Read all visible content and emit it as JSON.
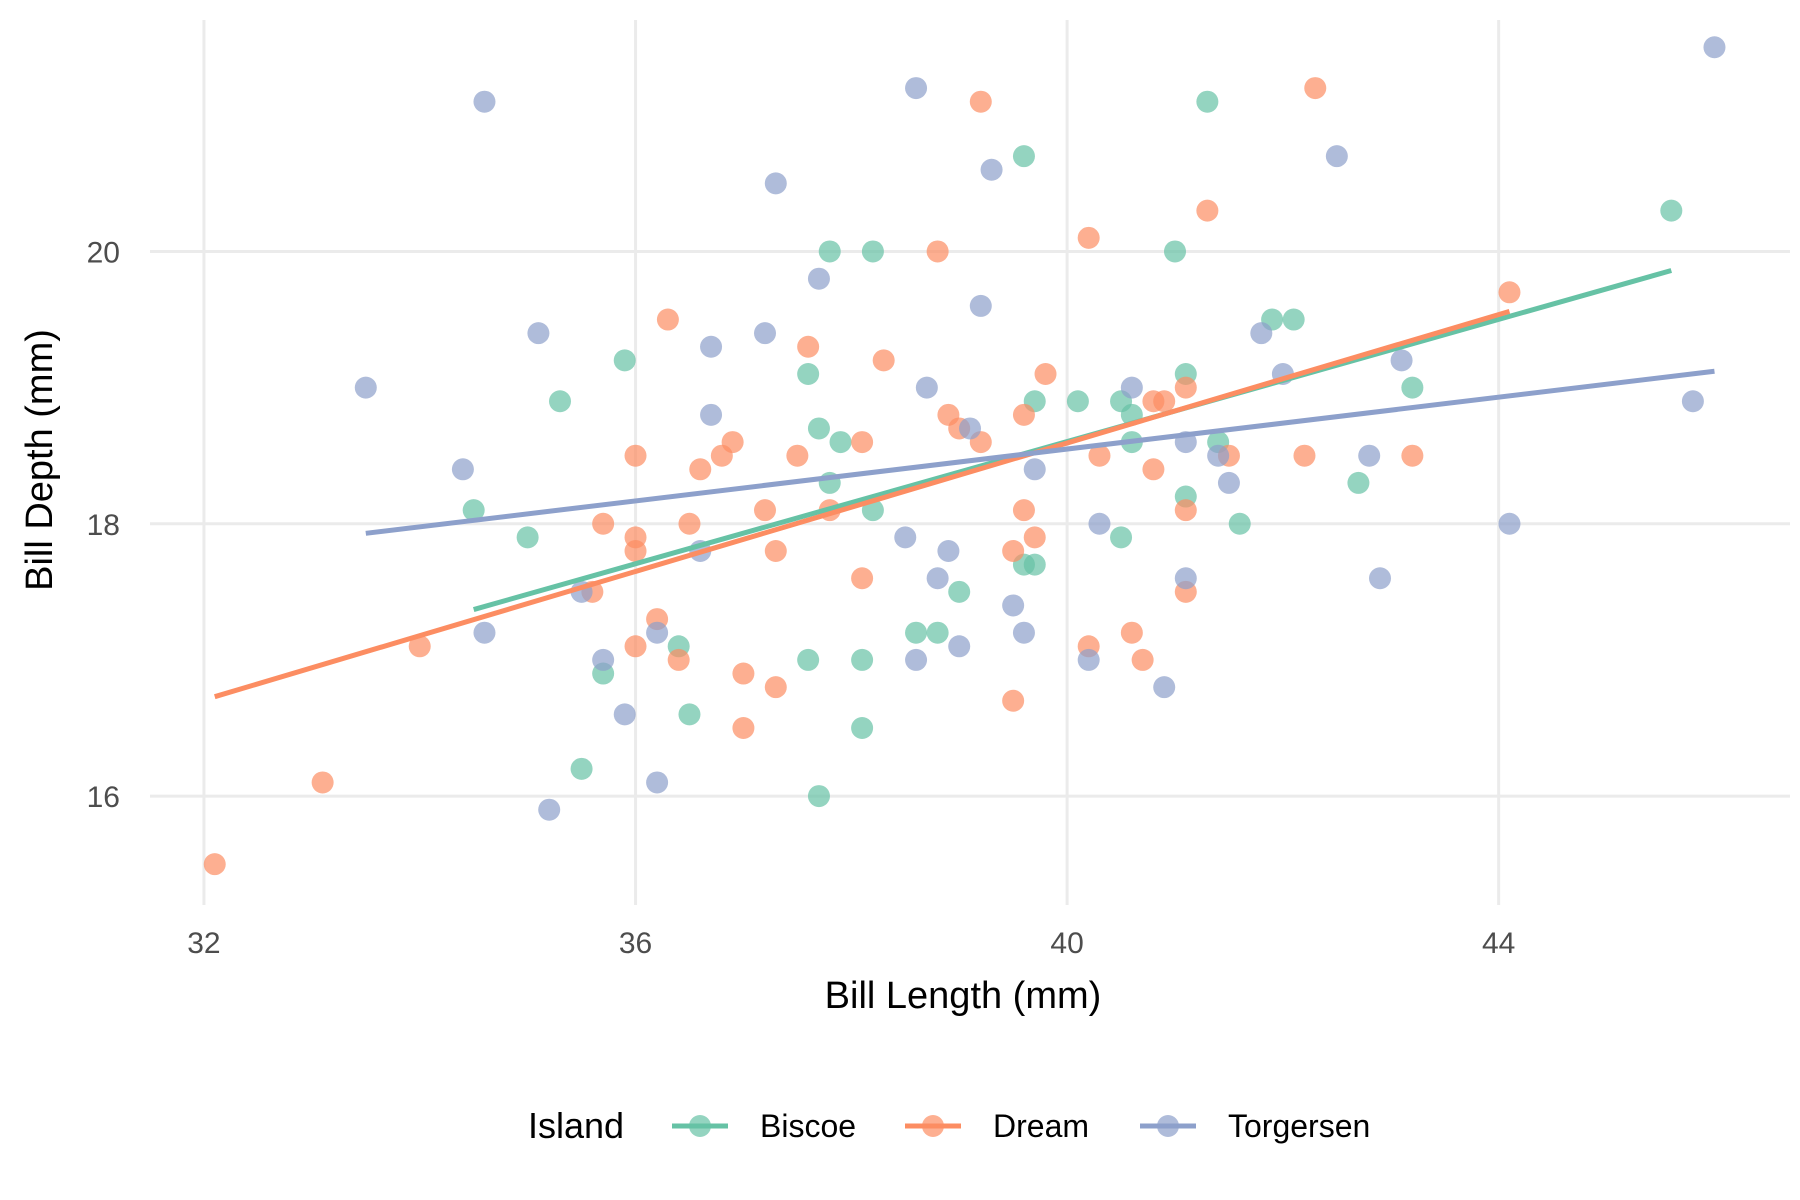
{
  "chart_data": {
    "type": "scatter",
    "title": "",
    "xlabel": "Bill Length (mm)",
    "ylabel": "Bill Depth (mm)",
    "xlim": [
      31.5,
      46.7
    ],
    "ylim": [
      15.2,
      21.7
    ],
    "x_ticks": [
      32,
      36,
      40,
      44
    ],
    "y_ticks": [
      16,
      18,
      20
    ],
    "x_tick_labels": [
      "32",
      "36",
      "40",
      "44"
    ],
    "y_tick_labels": [
      "16",
      "18",
      "20"
    ],
    "grid": true,
    "legend": {
      "title": "Island",
      "placement": "bottom",
      "entries": [
        "Biscoe",
        "Dream",
        "Torgersen"
      ]
    },
    "series": [
      {
        "name": "Biscoe",
        "color": "#66c2a5",
        "points": [
          [
            34.5,
            18.1
          ],
          [
            35.0,
            17.9
          ],
          [
            35.3,
            18.9
          ],
          [
            35.5,
            16.2
          ],
          [
            35.7,
            16.9
          ],
          [
            35.9,
            19.2
          ],
          [
            36.4,
            17.1
          ],
          [
            36.5,
            16.6
          ],
          [
            37.6,
            17.0
          ],
          [
            37.6,
            19.1
          ],
          [
            37.7,
            16.0
          ],
          [
            37.7,
            18.7
          ],
          [
            37.8,
            18.3
          ],
          [
            37.8,
            20.0
          ],
          [
            37.9,
            18.6
          ],
          [
            38.1,
            16.5
          ],
          [
            38.1,
            17.0
          ],
          [
            38.2,
            18.1
          ],
          [
            38.2,
            20.0
          ],
          [
            38.6,
            17.2
          ],
          [
            38.8,
            17.2
          ],
          [
            39.0,
            17.5
          ],
          [
            39.6,
            17.7
          ],
          [
            39.6,
            20.7
          ],
          [
            39.7,
            17.7
          ],
          [
            39.7,
            18.9
          ],
          [
            40.1,
            18.9
          ],
          [
            40.5,
            17.9
          ],
          [
            40.5,
            18.9
          ],
          [
            40.6,
            18.6
          ],
          [
            40.6,
            18.8
          ],
          [
            41.0,
            20.0
          ],
          [
            41.1,
            18.2
          ],
          [
            41.1,
            19.1
          ],
          [
            41.3,
            21.1
          ],
          [
            41.4,
            18.6
          ],
          [
            41.6,
            18.0
          ],
          [
            41.9,
            19.5
          ],
          [
            42.1,
            19.5
          ],
          [
            42.7,
            18.3
          ],
          [
            43.2,
            19.0
          ],
          [
            45.6,
            20.3
          ]
        ],
        "trend": [
          [
            34.5,
            17.37
          ],
          [
            45.6,
            19.86
          ]
        ]
      },
      {
        "name": "Dream",
        "color": "#fc8d62",
        "points": [
          [
            32.1,
            15.5
          ],
          [
            33.1,
            16.1
          ],
          [
            34.0,
            17.1
          ],
          [
            35.6,
            17.5
          ],
          [
            35.7,
            18.0
          ],
          [
            36.0,
            17.1
          ],
          [
            36.0,
            17.8
          ],
          [
            36.0,
            17.9
          ],
          [
            36.0,
            18.5
          ],
          [
            36.2,
            17.3
          ],
          [
            36.3,
            19.5
          ],
          [
            36.4,
            17.0
          ],
          [
            36.5,
            18.0
          ],
          [
            36.6,
            18.4
          ],
          [
            36.8,
            18.5
          ],
          [
            36.9,
            18.6
          ],
          [
            37.0,
            16.5
          ],
          [
            37.0,
            16.9
          ],
          [
            37.3,
            16.8
          ],
          [
            37.3,
            17.8
          ],
          [
            37.2,
            18.1
          ],
          [
            37.5,
            18.5
          ],
          [
            37.6,
            19.3
          ],
          [
            37.8,
            18.1
          ],
          [
            38.1,
            17.6
          ],
          [
            38.1,
            18.6
          ],
          [
            38.3,
            19.2
          ],
          [
            38.8,
            20.0
          ],
          [
            38.9,
            18.8
          ],
          [
            39.0,
            18.7
          ],
          [
            39.2,
            18.6
          ],
          [
            39.2,
            21.1
          ],
          [
            39.5,
            16.7
          ],
          [
            39.5,
            17.8
          ],
          [
            39.6,
            18.1
          ],
          [
            39.6,
            18.8
          ],
          [
            39.7,
            17.9
          ],
          [
            39.8,
            19.1
          ],
          [
            40.2,
            17.1
          ],
          [
            40.2,
            20.1
          ],
          [
            40.3,
            18.5
          ],
          [
            40.6,
            17.2
          ],
          [
            40.7,
            17.0
          ],
          [
            40.8,
            18.4
          ],
          [
            40.8,
            18.9
          ],
          [
            40.9,
            18.9
          ],
          [
            41.1,
            17.5
          ],
          [
            41.1,
            18.1
          ],
          [
            41.1,
            19.0
          ],
          [
            41.3,
            20.3
          ],
          [
            41.5,
            18.5
          ],
          [
            42.2,
            18.5
          ],
          [
            42.3,
            21.2
          ],
          [
            43.2,
            18.5
          ],
          [
            44.1,
            19.7
          ]
        ],
        "trend": [
          [
            32.1,
            16.73
          ],
          [
            44.1,
            19.56
          ]
        ]
      },
      {
        "name": "Torgersen",
        "color": "#8da0cb",
        "points": [
          [
            33.5,
            19.0
          ],
          [
            34.4,
            18.4
          ],
          [
            34.6,
            17.2
          ],
          [
            34.6,
            21.1
          ],
          [
            35.1,
            19.4
          ],
          [
            35.2,
            15.9
          ],
          [
            35.5,
            17.5
          ],
          [
            35.7,
            17.0
          ],
          [
            35.9,
            16.6
          ],
          [
            36.2,
            16.1
          ],
          [
            36.2,
            17.2
          ],
          [
            36.6,
            17.8
          ],
          [
            36.7,
            18.8
          ],
          [
            36.7,
            19.3
          ],
          [
            37.2,
            19.4
          ],
          [
            37.3,
            20.5
          ],
          [
            37.7,
            19.8
          ],
          [
            38.5,
            17.9
          ],
          [
            38.6,
            17.0
          ],
          [
            38.6,
            21.2
          ],
          [
            38.7,
            19.0
          ],
          [
            38.8,
            17.6
          ],
          [
            38.9,
            17.8
          ],
          [
            39.0,
            17.1
          ],
          [
            39.1,
            18.7
          ],
          [
            39.2,
            19.6
          ],
          [
            39.3,
            20.6
          ],
          [
            39.5,
            17.4
          ],
          [
            39.6,
            17.2
          ],
          [
            39.7,
            18.4
          ],
          [
            40.2,
            17.0
          ],
          [
            40.3,
            18.0
          ],
          [
            40.6,
            19.0
          ],
          [
            40.9,
            16.8
          ],
          [
            41.1,
            17.6
          ],
          [
            41.1,
            18.6
          ],
          [
            41.4,
            18.5
          ],
          [
            41.5,
            18.3
          ],
          [
            41.8,
            19.4
          ],
          [
            42.0,
            19.1
          ],
          [
            42.5,
            20.7
          ],
          [
            42.8,
            18.5
          ],
          [
            42.9,
            17.6
          ],
          [
            43.1,
            19.2
          ],
          [
            44.1,
            18.0
          ],
          [
            45.8,
            18.9
          ],
          [
            46.0,
            21.5
          ]
        ],
        "trend": [
          [
            33.5,
            17.93
          ],
          [
            46.0,
            19.12
          ]
        ]
      }
    ]
  }
}
